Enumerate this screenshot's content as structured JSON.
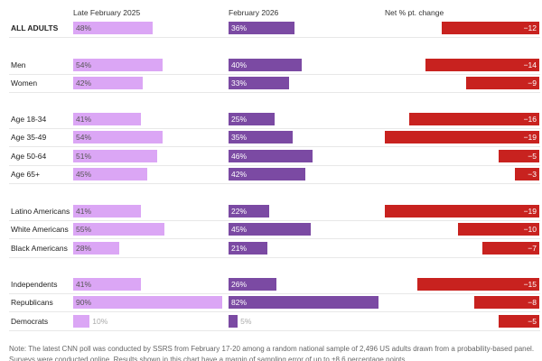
{
  "chart_data": {
    "type": "bar",
    "headers": [
      "Late February 2025",
      "February 2026",
      "Net % pt. change"
    ],
    "groups": [
      [
        {
          "label": "ALL ADULTS",
          "bold": true,
          "v2025": 48,
          "v2026": 36,
          "change": -12
        }
      ],
      [
        {
          "label": "Men",
          "v2025": 54,
          "v2026": 40,
          "change": -14
        },
        {
          "label": "Women",
          "v2025": 42,
          "v2026": 33,
          "change": -9
        }
      ],
      [
        {
          "label": "Age 18-34",
          "v2025": 41,
          "v2026": 25,
          "change": -16
        },
        {
          "label": "Age 35-49",
          "v2025": 54,
          "v2026": 35,
          "change": -19
        },
        {
          "label": "Age 50-64",
          "v2025": 51,
          "v2026": 46,
          "change": -5
        },
        {
          "label": "Age 65+",
          "v2025": 45,
          "v2026": 42,
          "change": -3
        }
      ],
      [
        {
          "label": "Latino Americans",
          "v2025": 41,
          "v2026": 22,
          "change": -19
        },
        {
          "label": "White Americans",
          "v2025": 55,
          "v2026": 45,
          "change": -10
        },
        {
          "label": "Black Americans",
          "v2025": 28,
          "v2026": 21,
          "change": -7
        }
      ],
      [
        {
          "label": "Independents",
          "v2025": 41,
          "v2026": 26,
          "change": -15
        },
        {
          "label": "Republicans",
          "v2025": 90,
          "v2026": 82,
          "change": -8
        },
        {
          "label": "Democrats",
          "v2025": 10,
          "v2026": 5,
          "change": -5
        }
      ]
    ],
    "colors": {
      "v2025": "#dba6f5",
      "v2026": "#7b4aa3",
      "change": "#c8221f"
    }
  },
  "note": "Note: The latest CNN poll was conducted by SSRS from February 17-20 among a random national sample of 2,496 US adults drawn from a probability-based panel. Surveys were conducted online. Results shown in this chart have a margin of sampling error of up to ±8.6 percentage points."
}
